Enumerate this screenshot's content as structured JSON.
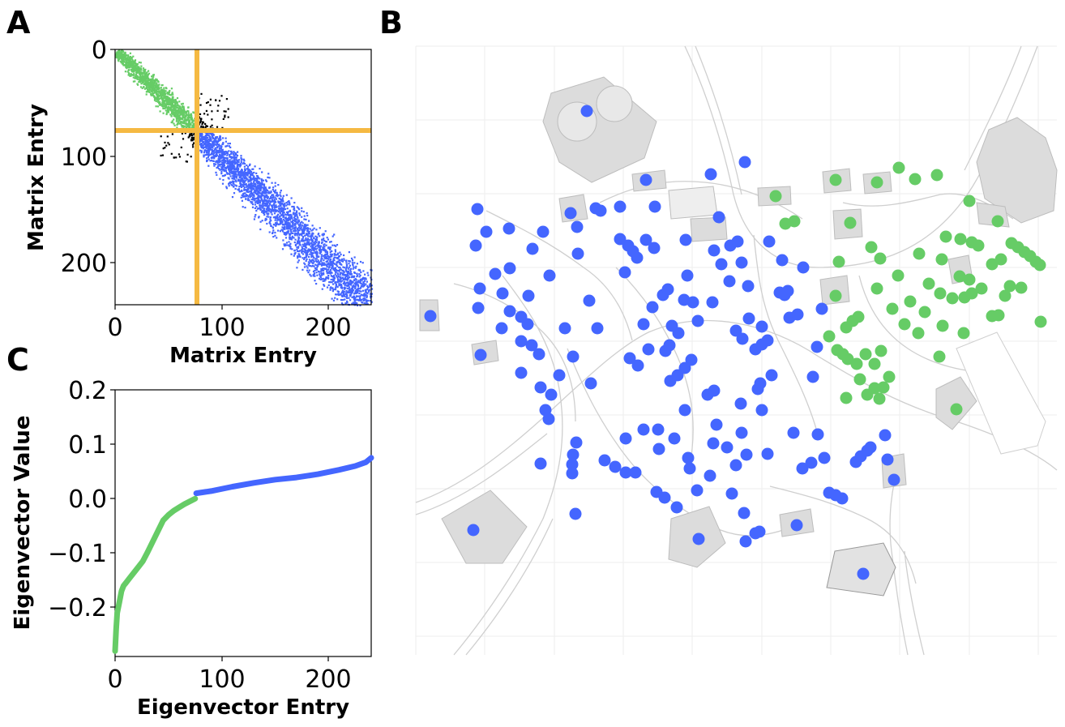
{
  "figure": {
    "panel_a_letter": "A",
    "panel_b_letter": "B",
    "panel_c_letter": "C"
  },
  "colors": {
    "cluster_1": "#66cc66",
    "cluster_2": "#4466ff",
    "off_block": "#000000",
    "partition_line": "#f5b942",
    "map_building": "#dcdcdc",
    "map_road": "#c8c8c8"
  },
  "chart_data": [
    {
      "panel": "A",
      "type": "heatmap",
      "description_kind": "sparse matrix scatter (nonzero entries)",
      "xlabel": "Matrix Entry",
      "ylabel": "Matrix Entry",
      "xlim": [
        0,
        240
      ],
      "ylim": [
        240,
        0
      ],
      "xticks": [
        "0",
        "100",
        "200"
      ],
      "yticks": [
        "0",
        "100",
        "200"
      ],
      "partition_index": 76,
      "n": 240,
      "green_block": [
        0,
        76
      ],
      "blue_block": [
        76,
        240
      ],
      "band_halfwidth_fraction": 0.12
    },
    {
      "panel": "C",
      "type": "line",
      "xlabel": "Eigenvector Entry",
      "ylabel": "Eigenvector Value",
      "xlim": [
        0,
        240
      ],
      "ylim": [
        -0.29,
        0.2
      ],
      "xticks": [
        "0",
        "100",
        "200"
      ],
      "yticks": [
        "0.2",
        "0.1",
        "0.0",
        "−0.1",
        "−0.2"
      ],
      "series": [
        {
          "cluster": "green",
          "x": [
            0,
            1,
            2,
            4,
            6,
            8,
            10,
            14,
            18,
            22,
            26,
            30,
            35,
            40,
            45,
            50,
            55,
            60,
            65,
            70,
            75
          ],
          "y": [
            -0.28,
            -0.24,
            -0.21,
            -0.19,
            -0.17,
            -0.16,
            -0.155,
            -0.145,
            -0.135,
            -0.125,
            -0.115,
            -0.1,
            -0.08,
            -0.06,
            -0.04,
            -0.03,
            -0.022,
            -0.016,
            -0.01,
            -0.005,
            0.0
          ]
        },
        {
          "cluster": "blue",
          "x": [
            76,
            90,
            110,
            130,
            150,
            170,
            190,
            210,
            225,
            235,
            240
          ],
          "y": [
            0.01,
            0.014,
            0.022,
            0.029,
            0.035,
            0.039,
            0.045,
            0.053,
            0.06,
            0.067,
            0.075
          ]
        }
      ]
    },
    {
      "panel": "B",
      "type": "scatter",
      "description_kind": "map points colored by cluster",
      "green_points": [
        [
          957,
          242
        ],
        [
          1031,
          222
        ],
        [
          1082,
          225
        ],
        [
          1109,
          207
        ],
        [
          1129,
          221
        ],
        [
          1156,
          216
        ],
        [
          969,
          276
        ],
        [
          980,
          273
        ],
        [
          1049,
          275
        ],
        [
          1196,
          248
        ],
        [
          1231,
          273
        ],
        [
          1167,
          292
        ],
        [
          1185,
          295
        ],
        [
          1199,
          299
        ],
        [
          1207,
          303
        ],
        [
          1248,
          300
        ],
        [
          1256,
          305
        ],
        [
          1264,
          311
        ],
        [
          1271,
          316
        ],
        [
          1278,
          323
        ],
        [
          1283,
          327
        ],
        [
          1224,
          326
        ],
        [
          1235,
          320
        ],
        [
          1035,
          323
        ],
        [
          1075,
          305
        ],
        [
          1086,
          319
        ],
        [
          1134,
          313
        ],
        [
          1162,
          320
        ],
        [
          1184,
          341
        ],
        [
          1196,
          345
        ],
        [
          1108,
          340
        ],
        [
          1146,
          350
        ],
        [
          1160,
          362
        ],
        [
          1175,
          368
        ],
        [
          1190,
          367
        ],
        [
          1199,
          362
        ],
        [
          1211,
          356
        ],
        [
          1246,
          353
        ],
        [
          1260,
          355
        ],
        [
          1240,
          365
        ],
        [
          1031,
          365
        ],
        [
          1082,
          356
        ],
        [
          1101,
          381
        ],
        [
          1123,
          372
        ],
        [
          1141,
          385
        ],
        [
          1224,
          390
        ],
        [
          1232,
          389
        ],
        [
          1284,
          397
        ],
        [
          1023,
          415
        ],
        [
          1044,
          404
        ],
        [
          1052,
          396
        ],
        [
          1059,
          391
        ],
        [
          1116,
          400
        ],
        [
          1133,
          411
        ],
        [
          1163,
          402
        ],
        [
          1189,
          411
        ],
        [
          1033,
          432
        ],
        [
          1040,
          437
        ],
        [
          1046,
          443
        ],
        [
          1057,
          449
        ],
        [
          1068,
          437
        ],
        [
          1087,
          433
        ],
        [
          1079,
          449
        ],
        [
          1159,
          440
        ],
        [
          1061,
          468
        ],
        [
          1079,
          479
        ],
        [
          1070,
          487
        ],
        [
          1090,
          478
        ],
        [
          1097,
          465
        ],
        [
          1085,
          492
        ],
        [
          1044,
          491
        ],
        [
          1180,
          505
        ]
      ],
      "blue_points": [
        [
          724,
          137
        ],
        [
          919,
          200
        ],
        [
          797,
          222
        ],
        [
          877,
          215
        ],
        [
          704,
          263
        ],
        [
          735,
          257
        ],
        [
          741,
          260
        ],
        [
          765,
          255
        ],
        [
          808,
          255
        ],
        [
          887,
          268
        ],
        [
          589,
          258
        ],
        [
          600,
          286
        ],
        [
          628,
          282
        ],
        [
          670,
          286
        ],
        [
          712,
          280
        ],
        [
          587,
          303
        ],
        [
          657,
          307
        ],
        [
          713,
          313
        ],
        [
          765,
          295
        ],
        [
          775,
          303
        ],
        [
          781,
          310
        ],
        [
          786,
          318
        ],
        [
          797,
          296
        ],
        [
          807,
          306
        ],
        [
          846,
          296
        ],
        [
          881,
          309
        ],
        [
          901,
          303
        ],
        [
          910,
          298
        ],
        [
          949,
          298
        ],
        [
          915,
          324
        ],
        [
          890,
          326
        ],
        [
          965,
          321
        ],
        [
          991,
          330
        ],
        [
          611,
          338
        ],
        [
          629,
          331
        ],
        [
          678,
          340
        ],
        [
          771,
          336
        ],
        [
          848,
          340
        ],
        [
          900,
          347
        ],
        [
          923,
          353
        ],
        [
          592,
          356
        ],
        [
          620,
          362
        ],
        [
          652,
          365
        ],
        [
          727,
          371
        ],
        [
          818,
          364
        ],
        [
          824,
          357
        ],
        [
          844,
          370
        ],
        [
          855,
          373
        ],
        [
          879,
          373
        ],
        [
          962,
          361
        ],
        [
          972,
          359
        ],
        [
          968,
          364
        ],
        [
          590,
          380
        ],
        [
          629,
          384
        ],
        [
          643,
          391
        ],
        [
          651,
          400
        ],
        [
          619,
          405
        ],
        [
          697,
          405
        ],
        [
          737,
          405
        ],
        [
          794,
          400
        ],
        [
          805,
          379
        ],
        [
          829,
          402
        ],
        [
          861,
          396
        ],
        [
          908,
          408
        ],
        [
          916,
          418
        ],
        [
          924,
          393
        ],
        [
          940,
          403
        ],
        [
          947,
          420
        ],
        [
          974,
          392
        ],
        [
          984,
          388
        ],
        [
          1014,
          381
        ],
        [
          593,
          438
        ],
        [
          643,
          421
        ],
        [
          656,
          426
        ],
        [
          665,
          437
        ],
        [
          707,
          440
        ],
        [
          777,
          442
        ],
        [
          787,
          451
        ],
        [
          800,
          431
        ],
        [
          821,
          433
        ],
        [
          826,
          426
        ],
        [
          837,
          411
        ],
        [
          853,
          444
        ],
        [
          932,
          431
        ],
        [
          940,
          425
        ],
        [
          1008,
          428
        ],
        [
          643,
          460
        ],
        [
          667,
          478
        ],
        [
          680,
          487
        ],
        [
          690,
          463
        ],
        [
          729,
          473
        ],
        [
          827,
          470
        ],
        [
          836,
          463
        ],
        [
          845,
          454
        ],
        [
          873,
          487
        ],
        [
          881,
          482
        ],
        [
          914,
          498
        ],
        [
          935,
          480
        ],
        [
          938,
          473
        ],
        [
          952,
          463
        ],
        [
          1003,
          465
        ],
        [
          673,
          506
        ],
        [
          677,
          517
        ],
        [
          845,
          506
        ],
        [
          940,
          506
        ],
        [
          711,
          546
        ],
        [
          772,
          541
        ],
        [
          794,
          530
        ],
        [
          812,
          530
        ],
        [
          832,
          541
        ],
        [
          884,
          524
        ],
        [
          915,
          534
        ],
        [
          1009,
          536
        ],
        [
          979,
          534
        ],
        [
          1092,
          537
        ],
        [
          880,
          547
        ],
        [
          897,
          552
        ],
        [
          849,
          565
        ],
        [
          813,
          554
        ],
        [
          707,
          561
        ],
        [
          706,
          573
        ],
        [
          706,
          584
        ],
        [
          667,
          572
        ],
        [
          759,
          576
        ],
        [
          772,
          583
        ],
        [
          784,
          583
        ],
        [
          746,
          568
        ],
        [
          851,
          578
        ],
        [
          908,
          574
        ],
        [
          921,
          561
        ],
        [
          947,
          560
        ],
        [
          990,
          578
        ],
        [
          1001,
          571
        ],
        [
          1017,
          565
        ],
        [
          1056,
          570
        ],
        [
          1062,
          563
        ],
        [
          1070,
          556
        ],
        [
          1074,
          552
        ],
        [
          1095,
          567
        ],
        [
          1103,
          592
        ],
        [
          1023,
          608
        ],
        [
          1031,
          611
        ],
        [
          1039,
          615
        ],
        [
          810,
          607
        ],
        [
          820,
          614
        ],
        [
          835,
          626
        ],
        [
          860,
          605
        ],
        [
          876,
          587
        ],
        [
          903,
          609
        ],
        [
          918,
          633
        ],
        [
          710,
          634
        ],
        [
          983,
          648
        ],
        [
          932,
          658
        ],
        [
          937,
          656
        ],
        [
          920,
          668
        ],
        [
          862,
          665
        ],
        [
          584,
          654
        ],
        [
          1065,
          708
        ],
        [
          531,
          390
        ]
      ]
    }
  ]
}
